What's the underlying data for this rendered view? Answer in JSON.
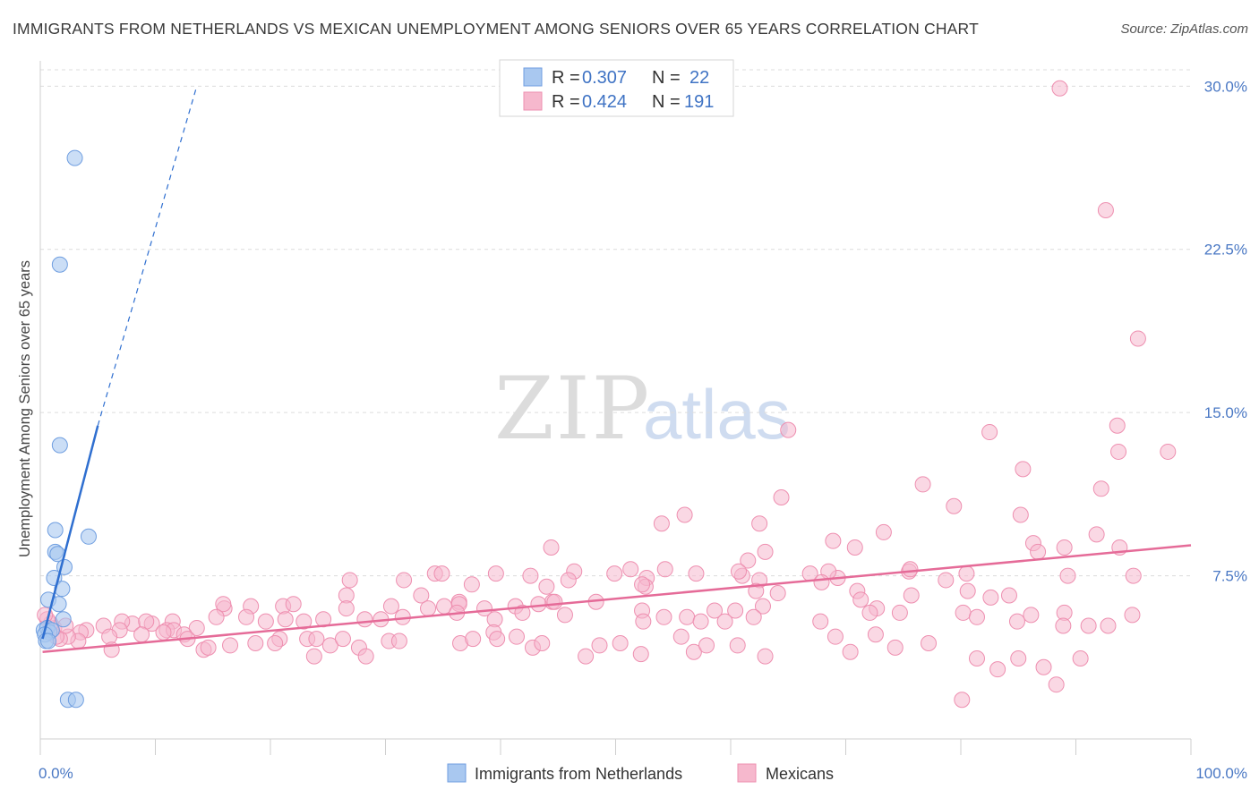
{
  "header": {
    "title": "IMMIGRANTS FROM NETHERLANDS VS MEXICAN UNEMPLOYMENT AMONG SENIORS OVER 65 YEARS CORRELATION CHART",
    "source": "Source: ZipAtlas.com"
  },
  "watermark": {
    "part1": "ZIP",
    "part2": "atlas"
  },
  "legend": {
    "r_label": "R =",
    "n_label": "N =",
    "rows": [
      {
        "r": "0.307",
        "n": "22",
        "color": "#a9c8f0"
      },
      {
        "r": "0.424",
        "n": "191",
        "color": "#f6b8cd"
      }
    ]
  },
  "bottom_legend": [
    {
      "label": "Immigrants from Netherlands",
      "color": "#a9c8f0"
    },
    {
      "label": "Mexicans",
      "color": "#f6b8cd"
    }
  ],
  "colors": {
    "blue_fill": "#a9c8f0",
    "blue_stroke": "#6f9ee0",
    "blue_line": "#2f6fd0",
    "pink_fill": "#f6b8cd",
    "pink_stroke": "#ee8fb0",
    "pink_line": "#e56b98",
    "grid": "#dcdcdc",
    "tick_text": "#4a78c4"
  },
  "chart_data": {
    "type": "scatter",
    "ylabel": "Unemployment Among Seniors over 65 years",
    "xlim": [
      0,
      100
    ],
    "ylim": [
      0,
      31
    ],
    "x_tick_labels": [
      {
        "value": 0,
        "label": "0.0%"
      },
      {
        "value": 100,
        "label": "100.0%"
      }
    ],
    "y_ticks": [
      {
        "value": 7.5,
        "label": "7.5%"
      },
      {
        "value": 15.0,
        "label": "15.0%"
      },
      {
        "value": 22.5,
        "label": "22.5%"
      },
      {
        "value": 30.0,
        "label": "30.0%"
      }
    ],
    "x_minor_ticks": [
      0,
      10,
      20,
      30,
      40,
      50,
      60,
      70,
      80,
      90,
      100
    ],
    "grid": "horizontal dashed",
    "legend_position": "top-center",
    "series": [
      {
        "name": "Immigrants from Netherlands",
        "r": 0.307,
        "n": 22,
        "points": [
          [
            3.0,
            26.7
          ],
          [
            1.7,
            21.8
          ],
          [
            1.7,
            13.5
          ],
          [
            1.3,
            9.6
          ],
          [
            4.2,
            9.3
          ],
          [
            1.3,
            8.6
          ],
          [
            1.5,
            8.5
          ],
          [
            2.1,
            7.9
          ],
          [
            1.2,
            7.4
          ],
          [
            1.9,
            6.9
          ],
          [
            0.7,
            6.4
          ],
          [
            1.6,
            6.2
          ],
          [
            2.0,
            5.5
          ],
          [
            0.3,
            5.0
          ],
          [
            0.6,
            5.1
          ],
          [
            0.8,
            4.9
          ],
          [
            1.0,
            5.0
          ],
          [
            0.4,
            4.8
          ],
          [
            0.5,
            4.5
          ],
          [
            0.7,
            4.5
          ],
          [
            2.4,
            1.8
          ],
          [
            3.1,
            1.8
          ]
        ],
        "trend": {
          "x": [
            0.2,
            5.0
          ],
          "y": [
            4.6,
            14.4
          ]
        },
        "trend_extension": {
          "x": [
            5.0,
            13.6
          ],
          "y": [
            14.4,
            30.0
          ]
        }
      },
      {
        "name": "Mexicans",
        "r": 0.424,
        "n": 191,
        "points": [
          [
            88.6,
            29.9
          ],
          [
            92.6,
            24.3
          ],
          [
            95.4,
            18.4
          ],
          [
            65.0,
            14.2
          ],
          [
            93.6,
            14.4
          ],
          [
            82.5,
            14.1
          ],
          [
            93.7,
            13.2
          ],
          [
            98.0,
            13.2
          ],
          [
            85.4,
            12.4
          ],
          [
            76.7,
            11.7
          ],
          [
            92.2,
            11.5
          ],
          [
            64.4,
            11.1
          ],
          [
            79.4,
            10.7
          ],
          [
            85.2,
            10.3
          ],
          [
            56.0,
            10.3
          ],
          [
            54.0,
            9.9
          ],
          [
            62.5,
            9.9
          ],
          [
            73.3,
            9.5
          ],
          [
            91.8,
            9.4
          ],
          [
            68.9,
            9.1
          ],
          [
            86.3,
            9.0
          ],
          [
            44.4,
            8.8
          ],
          [
            63.0,
            8.6
          ],
          [
            86.7,
            8.6
          ],
          [
            89.0,
            8.8
          ],
          [
            93.8,
            8.8
          ],
          [
            61.5,
            8.2
          ],
          [
            70.8,
            8.8
          ],
          [
            51.3,
            7.8
          ],
          [
            54.3,
            7.8
          ],
          [
            57.0,
            7.6
          ],
          [
            46.4,
            7.7
          ],
          [
            52.7,
            7.4
          ],
          [
            69.3,
            7.4
          ],
          [
            75.5,
            7.7
          ],
          [
            68.5,
            7.7
          ],
          [
            61.0,
            7.5
          ],
          [
            62.5,
            7.3
          ],
          [
            89.3,
            7.5
          ],
          [
            95.0,
            7.5
          ],
          [
            75.6,
            7.8
          ],
          [
            66.9,
            7.6
          ],
          [
            78.7,
            7.3
          ],
          [
            80.5,
            7.6
          ],
          [
            49.9,
            7.6
          ],
          [
            42.6,
            7.5
          ],
          [
            34.3,
            7.6
          ],
          [
            26.9,
            7.3
          ],
          [
            31.6,
            7.3
          ],
          [
            39.6,
            7.6
          ],
          [
            34.9,
            7.6
          ],
          [
            60.7,
            7.7
          ],
          [
            67.9,
            7.2
          ],
          [
            44.0,
            7.0
          ],
          [
            52.6,
            7.0
          ],
          [
            45.9,
            7.3
          ],
          [
            37.5,
            7.1
          ],
          [
            52.3,
            7.1
          ],
          [
            62.2,
            6.8
          ],
          [
            71.0,
            6.8
          ],
          [
            82.6,
            6.5
          ],
          [
            26.6,
            6.6
          ],
          [
            33.1,
            6.6
          ],
          [
            36.4,
            6.3
          ],
          [
            44.5,
            6.3
          ],
          [
            64.1,
            6.7
          ],
          [
            75.7,
            6.6
          ],
          [
            80.6,
            6.8
          ],
          [
            84.2,
            6.6
          ],
          [
            48.3,
            6.3
          ],
          [
            33.7,
            6.0
          ],
          [
            30.5,
            6.1
          ],
          [
            38.6,
            6.0
          ],
          [
            41.3,
            6.1
          ],
          [
            44.7,
            6.3
          ],
          [
            35.1,
            6.1
          ],
          [
            18.3,
            6.1
          ],
          [
            21.1,
            6.1
          ],
          [
            16.0,
            6.0
          ],
          [
            15.9,
            6.2
          ],
          [
            22.0,
            6.2
          ],
          [
            26.6,
            6.0
          ],
          [
            36.4,
            6.2
          ],
          [
            43.3,
            6.2
          ],
          [
            52.3,
            5.9
          ],
          [
            58.6,
            5.9
          ],
          [
            60.4,
            5.9
          ],
          [
            62.8,
            6.1
          ],
          [
            71.3,
            6.4
          ],
          [
            72.7,
            6.0
          ],
          [
            72.1,
            5.8
          ],
          [
            80.2,
            5.8
          ],
          [
            86.1,
            5.7
          ],
          [
            89.0,
            5.8
          ],
          [
            94.9,
            5.7
          ],
          [
            31.5,
            5.6
          ],
          [
            36.2,
            5.8
          ],
          [
            39.5,
            5.5
          ],
          [
            41.9,
            5.8
          ],
          [
            45.6,
            5.7
          ],
          [
            52.4,
            5.4
          ],
          [
            54.2,
            5.6
          ],
          [
            56.2,
            5.6
          ],
          [
            57.4,
            5.4
          ],
          [
            59.5,
            5.4
          ],
          [
            62.0,
            5.6
          ],
          [
            67.8,
            5.4
          ],
          [
            74.7,
            5.8
          ],
          [
            81.4,
            5.6
          ],
          [
            84.9,
            5.4
          ],
          [
            88.9,
            5.2
          ],
          [
            91.1,
            5.2
          ],
          [
            92.8,
            5.2
          ],
          [
            15.3,
            5.6
          ],
          [
            17.9,
            5.6
          ],
          [
            19.6,
            5.4
          ],
          [
            21.3,
            5.5
          ],
          [
            22.9,
            5.4
          ],
          [
            24.6,
            5.5
          ],
          [
            28.2,
            5.5
          ],
          [
            29.6,
            5.5
          ],
          [
            11.5,
            5.4
          ],
          [
            11.0,
            5.0
          ],
          [
            13.6,
            5.1
          ],
          [
            8.0,
            5.3
          ],
          [
            7.1,
            5.4
          ],
          [
            9.7,
            5.3
          ],
          [
            9.2,
            5.4
          ],
          [
            11.6,
            5.0
          ],
          [
            6.9,
            5.0
          ],
          [
            5.5,
            5.2
          ],
          [
            4.0,
            5.0
          ],
          [
            3.5,
            4.9
          ],
          [
            3.3,
            4.5
          ],
          [
            2.4,
            4.7
          ],
          [
            1.7,
            4.6
          ],
          [
            1.4,
            4.7
          ],
          [
            1.2,
            5.1
          ],
          [
            0.9,
            5.3
          ],
          [
            0.6,
            5.5
          ],
          [
            0.4,
            5.7
          ],
          [
            2.2,
            5.2
          ],
          [
            6.0,
            4.7
          ],
          [
            8.8,
            4.8
          ],
          [
            10.7,
            4.9
          ],
          [
            12.5,
            4.8
          ],
          [
            14.2,
            4.1
          ],
          [
            14.6,
            4.2
          ],
          [
            16.5,
            4.3
          ],
          [
            18.7,
            4.4
          ],
          [
            20.8,
            4.6
          ],
          [
            23.2,
            4.6
          ],
          [
            24.0,
            4.6
          ],
          [
            25.2,
            4.3
          ],
          [
            26.3,
            4.6
          ],
          [
            27.7,
            4.2
          ],
          [
            28.3,
            3.8
          ],
          [
            30.3,
            4.5
          ],
          [
            31.2,
            4.5
          ],
          [
            36.5,
            4.4
          ],
          [
            37.6,
            4.6
          ],
          [
            39.4,
            4.9
          ],
          [
            39.7,
            4.6
          ],
          [
            41.4,
            4.7
          ],
          [
            42.8,
            4.2
          ],
          [
            43.6,
            4.4
          ],
          [
            47.4,
            3.8
          ],
          [
            48.6,
            4.3
          ],
          [
            50.4,
            4.4
          ],
          [
            52.2,
            3.9
          ],
          [
            55.7,
            4.7
          ],
          [
            56.8,
            4.0
          ],
          [
            57.9,
            4.3
          ],
          [
            60.6,
            4.3
          ],
          [
            63.0,
            3.8
          ],
          [
            69.1,
            4.7
          ],
          [
            70.4,
            4.0
          ],
          [
            72.6,
            4.8
          ],
          [
            74.3,
            4.2
          ],
          [
            77.2,
            4.4
          ],
          [
            80.1,
            1.8
          ],
          [
            81.4,
            3.7
          ],
          [
            83.2,
            3.2
          ],
          [
            85.0,
            3.7
          ],
          [
            87.2,
            3.3
          ],
          [
            88.3,
            2.5
          ],
          [
            90.4,
            3.7
          ],
          [
            6.2,
            4.1
          ],
          [
            23.8,
            3.8
          ],
          [
            12.8,
            4.6
          ],
          [
            20.4,
            4.4
          ]
        ],
        "trend": {
          "x": [
            0.2,
            100
          ],
          "y": [
            4.0,
            8.9
          ]
        }
      }
    ]
  }
}
